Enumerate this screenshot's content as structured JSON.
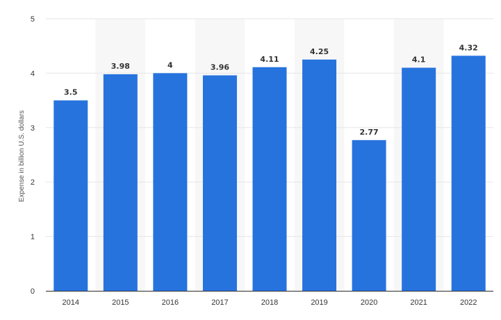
{
  "chart_data": {
    "type": "bar",
    "title": "",
    "xlabel": "",
    "ylabel": "Expense in billion U.S. dollars",
    "categories": [
      "2014",
      "2015",
      "2016",
      "2017",
      "2018",
      "2019",
      "2020",
      "2021",
      "2022"
    ],
    "values": [
      3.5,
      3.98,
      4,
      3.96,
      4.11,
      4.25,
      2.77,
      4.1,
      4.32
    ],
    "value_labels": [
      "3.5",
      "3.98",
      "4",
      "3.96",
      "4.11",
      "4.25",
      "2.77",
      "4.1",
      "4.32"
    ],
    "ylim": [
      0,
      5
    ],
    "yticks": [
      "0",
      "1",
      "2",
      "3",
      "4",
      "5"
    ],
    "grid": true,
    "legend": "none",
    "colors": {
      "bar": "#2773de",
      "grid": "#e6e6e6",
      "band": "#f7f7f7",
      "axis": "#333333"
    }
  }
}
